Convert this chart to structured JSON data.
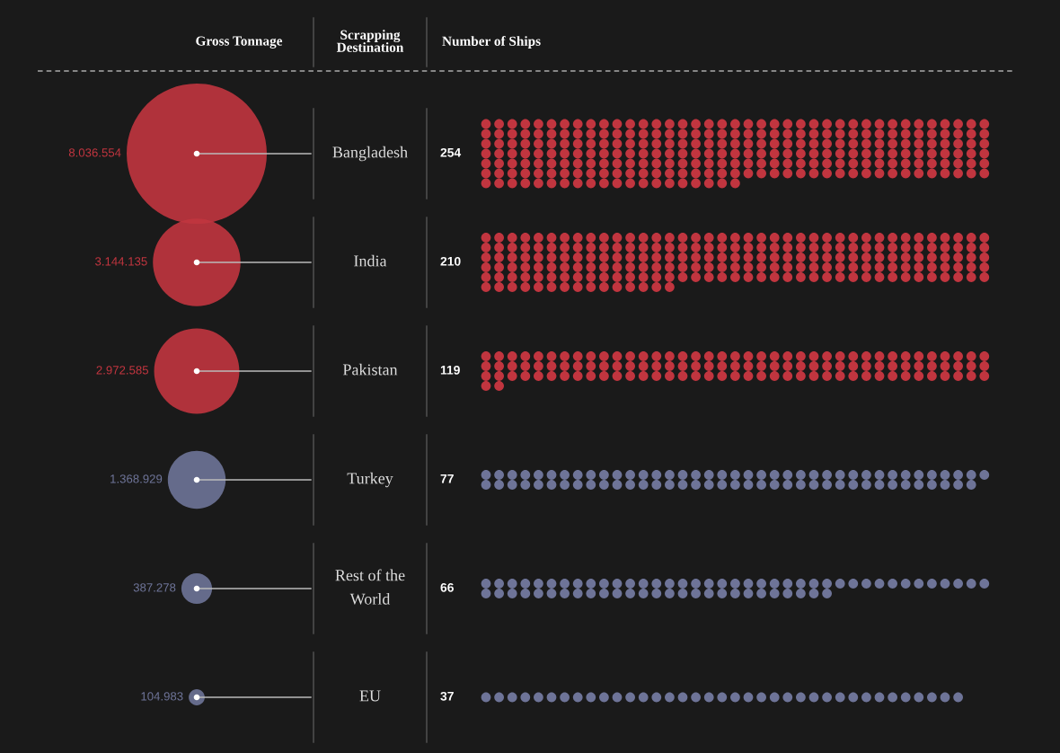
{
  "chart_data": {
    "type": "other",
    "ylabel": "Scrapping\nDestination",
    "categories": [
      "Bangladesh",
      "India",
      "Pakistan",
      "Turkey",
      "Rest of the\nWorld",
      "EU"
    ],
    "series": [
      {
        "name": "Gross Tonnage",
        "type": "bubble",
        "colors": [
          "#c1353f",
          "#c1353f",
          "#c1353f",
          "#6e7498",
          "#6e7498",
          "#6e7498"
        ],
        "values": [
          8036554,
          3144135,
          2972585,
          1368929,
          387278,
          104983
        ],
        "value_labels": [
          "8.036.554",
          "3.144.135",
          "2.972.585",
          "1.368.929",
          "387.278",
          "104.983"
        ]
      },
      {
        "name": "Number of Ships",
        "colors": [
          "#c1353f",
          "#c1353f",
          "#c1353f",
          "#6e7498",
          "#6e7498",
          "#6e7498"
        ],
        "values": [
          254,
          210,
          119,
          77,
          66,
          37
        ],
        "data_labels": true
      }
    ]
  }
}
